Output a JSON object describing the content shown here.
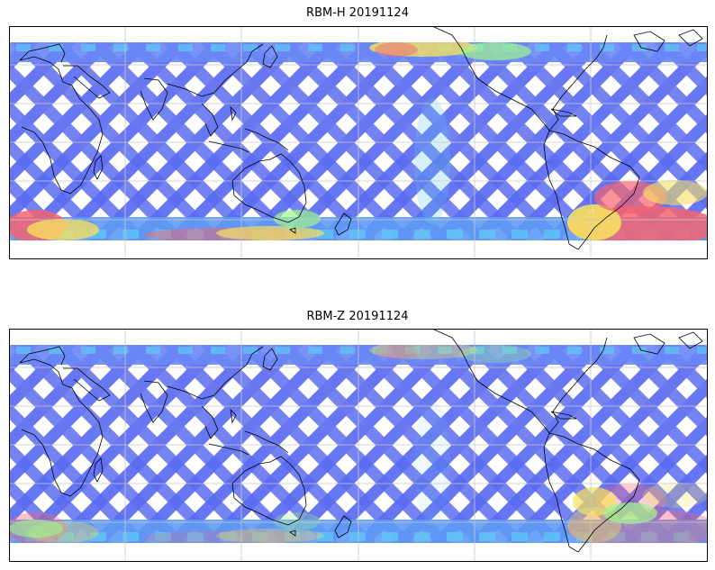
{
  "panels": [
    {
      "title": "RBM-H 20191124",
      "variable": "RBM-H",
      "date": "20191124",
      "high_region_intensity": 1.0
    },
    {
      "title": "RBM-Z 20191124",
      "variable": "RBM-Z",
      "date": "20191124",
      "high_region_intensity": 0.45
    }
  ],
  "colors": {
    "low": "#5b6cf2",
    "mid": "#5fc8f5",
    "green": "#9ff58f",
    "yellow": "#f5e060",
    "high": "#f5646e",
    "coast": "#000000",
    "grid": "#c8c8c8",
    "frame": "#000000"
  }
}
